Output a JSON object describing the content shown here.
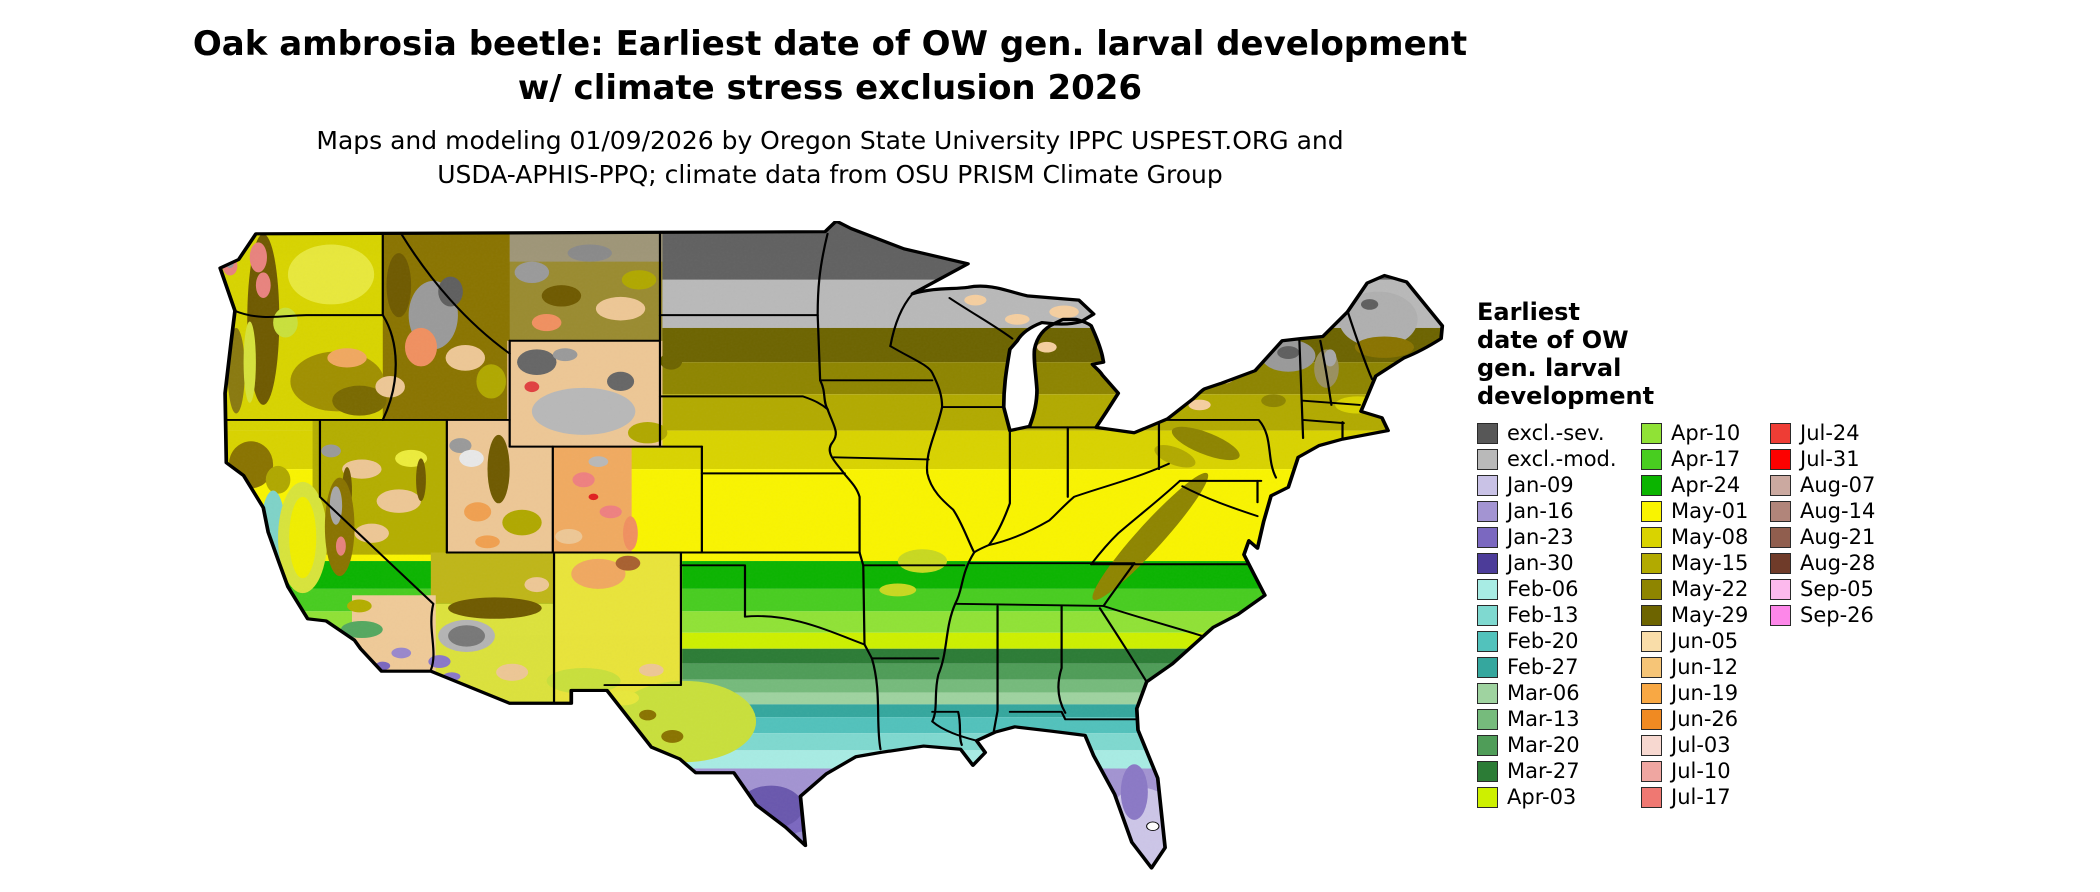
{
  "title": {
    "line1": "Oak ambrosia beetle: Earliest date of OW gen. larval development",
    "line2": "w/ climate stress exclusion 2026"
  },
  "subtitle": {
    "line1": "Maps and modeling 01/09/2026 by Oregon State University IPPC USPEST.ORG and",
    "line2": "USDA-APHIS-PPQ; climate data from OSU PRISM Climate Group"
  },
  "map": {
    "region": "Continental United States",
    "description": "Choropleth raster map of earliest date of overwintered generation larval development, colored by weekly date classes with climate stress exclusion zones"
  },
  "legend": {
    "title": "Earliest date of OW gen. larval development",
    "columns": [
      {
        "entries": [
          {
            "label": "excl.-sev.",
            "color": "#575757"
          },
          {
            "label": "excl.-mod.",
            "color": "#b9b9b9"
          },
          {
            "label": "Jan-09",
            "color": "#c9c2e6"
          },
          {
            "label": "Jan-16",
            "color": "#a394d2"
          },
          {
            "label": "Jan-23",
            "color": "#7b68c0"
          },
          {
            "label": "Jan-30",
            "color": "#4c3c99"
          },
          {
            "label": "Feb-06",
            "color": "#a8ece4"
          },
          {
            "label": "Feb-13",
            "color": "#7fd9d0"
          },
          {
            "label": "Feb-20",
            "color": "#52c2bc"
          },
          {
            "label": "Feb-27",
            "color": "#35a79e"
          },
          {
            "label": "Mar-06",
            "color": "#9fd3a0"
          },
          {
            "label": "Mar-13",
            "color": "#76bb7c"
          },
          {
            "label": "Mar-20",
            "color": "#4f9d58"
          },
          {
            "label": "Mar-27",
            "color": "#2c7c36"
          },
          {
            "label": "Apr-03",
            "color": "#cdf000"
          }
        ]
      },
      {
        "entries": [
          {
            "label": "Apr-10",
            "color": "#90e236"
          },
          {
            "label": "Apr-17",
            "color": "#48cd20"
          },
          {
            "label": "Apr-24",
            "color": "#0bb400"
          },
          {
            "label": "May-01",
            "color": "#f9f400"
          },
          {
            "label": "May-08",
            "color": "#d9d300"
          },
          {
            "label": "May-15",
            "color": "#b2aa00"
          },
          {
            "label": "May-22",
            "color": "#8e8500"
          },
          {
            "label": "May-29",
            "color": "#6d6400"
          },
          {
            "label": "Jun-05",
            "color": "#f9dda9"
          },
          {
            "label": "Jun-12",
            "color": "#f6c577"
          },
          {
            "label": "Jun-19",
            "color": "#f8a844"
          },
          {
            "label": "Jun-26",
            "color": "#f08a22"
          },
          {
            "label": "Jul-03",
            "color": "#f7d8d0"
          },
          {
            "label": "Jul-10",
            "color": "#efa6a1"
          },
          {
            "label": "Jul-17",
            "color": "#ef7872"
          }
        ]
      },
      {
        "entries": [
          {
            "label": "Jul-24",
            "color": "#ee3d35"
          },
          {
            "label": "Jul-31",
            "color": "#fd0100"
          },
          {
            "label": "Aug-07",
            "color": "#cba9a0"
          },
          {
            "label": "Aug-14",
            "color": "#b1857a"
          },
          {
            "label": "Aug-21",
            "color": "#905e4e"
          },
          {
            "label": "Aug-28",
            "color": "#6f3b29"
          },
          {
            "label": "Sep-05",
            "color": "#fcb9ed"
          },
          {
            "label": "Sep-26",
            "color": "#fd87e9"
          }
        ]
      }
    ]
  }
}
